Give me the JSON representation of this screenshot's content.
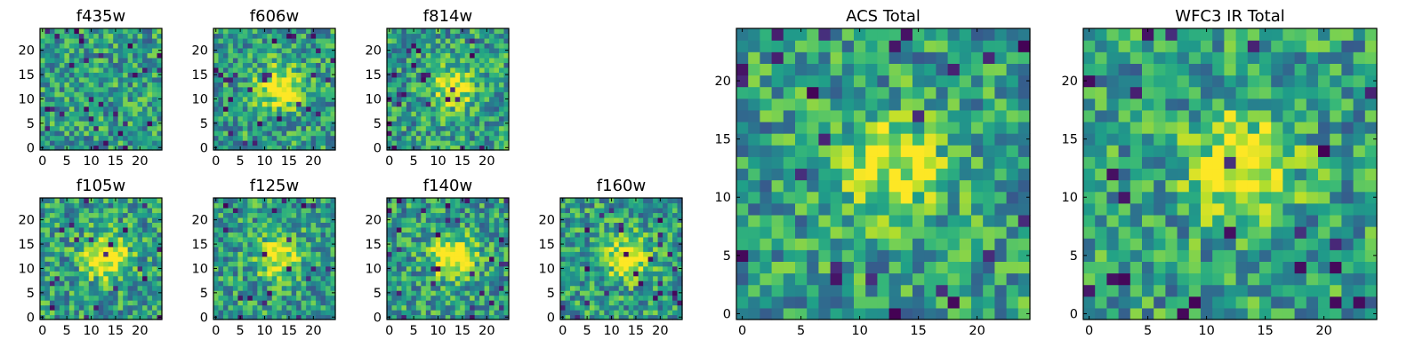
{
  "chart_data": [
    {
      "type": "heatmap",
      "title": "f435w",
      "xticks": [
        "0",
        "5",
        "10",
        "15",
        "20"
      ],
      "yticks": [
        "0",
        "5",
        "10",
        "15",
        "20"
      ],
      "xlim": [
        -0.5,
        24.5
      ],
      "ylim": [
        -0.5,
        24.5
      ],
      "grid_size": 25,
      "colormap": "viridis",
      "seed": 11,
      "blob": 0.0
    },
    {
      "type": "heatmap",
      "title": "f606w",
      "xticks": [
        "0",
        "5",
        "10",
        "15",
        "20"
      ],
      "yticks": [
        "0",
        "5",
        "10",
        "15",
        "20"
      ],
      "xlim": [
        -0.5,
        24.5
      ],
      "ylim": [
        -0.5,
        24.5
      ],
      "grid_size": 25,
      "colormap": "viridis",
      "seed": 23,
      "blob": 0.55
    },
    {
      "type": "heatmap",
      "title": "f814w",
      "xticks": [
        "0",
        "5",
        "10",
        "15",
        "20"
      ],
      "yticks": [
        "0",
        "5",
        "10",
        "15",
        "20"
      ],
      "xlim": [
        -0.5,
        24.5
      ],
      "ylim": [
        -0.5,
        24.5
      ],
      "grid_size": 25,
      "colormap": "viridis",
      "seed": 37,
      "blob": 0.45
    },
    {
      "type": "heatmap",
      "title": "f105w",
      "xticks": [
        "0",
        "5",
        "10",
        "15",
        "20"
      ],
      "yticks": [
        "0",
        "5",
        "10",
        "15",
        "20"
      ],
      "xlim": [
        -0.5,
        24.5
      ],
      "ylim": [
        -0.5,
        24.5
      ],
      "grid_size": 25,
      "colormap": "viridis",
      "seed": 41,
      "blob": 0.6
    },
    {
      "type": "heatmap",
      "title": "f125w",
      "xticks": [
        "0",
        "5",
        "10",
        "15",
        "20"
      ],
      "yticks": [
        "0",
        "5",
        "10",
        "15",
        "20"
      ],
      "xlim": [
        -0.5,
        24.5
      ],
      "ylim": [
        -0.5,
        24.5
      ],
      "grid_size": 25,
      "colormap": "viridis",
      "seed": 53,
      "blob": 0.5
    },
    {
      "type": "heatmap",
      "title": "f140w",
      "xticks": [
        "0",
        "5",
        "10",
        "15",
        "20"
      ],
      "yticks": [
        "0",
        "5",
        "10",
        "15",
        "20"
      ],
      "xlim": [
        -0.5,
        24.5
      ],
      "ylim": [
        -0.5,
        24.5
      ],
      "grid_size": 25,
      "colormap": "viridis",
      "seed": 67,
      "blob": 0.6
    },
    {
      "type": "heatmap",
      "title": "f160w",
      "xticks": [
        "0",
        "5",
        "10",
        "15",
        "20"
      ],
      "yticks": [
        "0",
        "5",
        "10",
        "15",
        "20"
      ],
      "xlim": [
        -0.5,
        24.5
      ],
      "ylim": [
        -0.5,
        24.5
      ],
      "grid_size": 25,
      "colormap": "viridis",
      "seed": 79,
      "blob": 0.5
    },
    {
      "type": "heatmap",
      "title": "ACS Total",
      "xticks": [
        "0",
        "5",
        "10",
        "15",
        "20"
      ],
      "yticks": [
        "0",
        "5",
        "10",
        "15",
        "20"
      ],
      "xlim": [
        -0.5,
        24.5
      ],
      "ylim": [
        -0.5,
        24.5
      ],
      "grid_size": 25,
      "colormap": "viridis",
      "seed": 97,
      "blob": 0.45
    },
    {
      "type": "heatmap",
      "title": "WFC3 IR Total",
      "xticks": [
        "0",
        "5",
        "10",
        "15",
        "20"
      ],
      "yticks": [
        "0",
        "5",
        "10",
        "15",
        "20"
      ],
      "xlim": [
        -0.5,
        24.5
      ],
      "ylim": [
        -0.5,
        24.5
      ],
      "grid_size": 25,
      "colormap": "viridis",
      "seed": 113,
      "blob": 0.55
    }
  ]
}
